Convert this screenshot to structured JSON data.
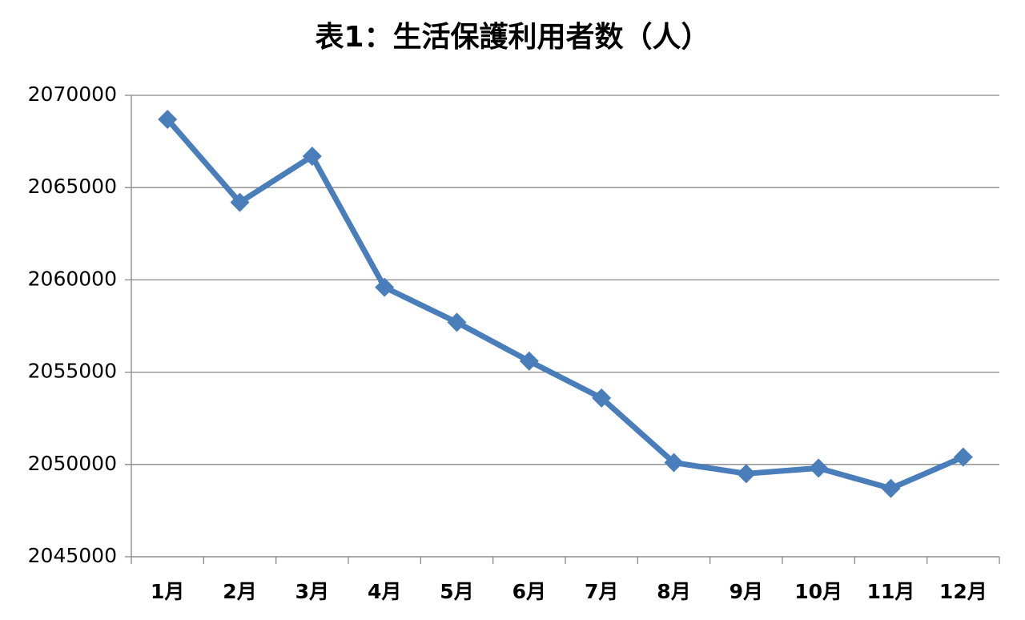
{
  "chart_data": {
    "type": "line",
    "title": "表1：生活保護利用者数（人）",
    "categories": [
      "1月",
      "2月",
      "3月",
      "4月",
      "5月",
      "6月",
      "7月",
      "8月",
      "9月",
      "10月",
      "11月",
      "12月"
    ],
    "values": [
      2068700,
      2064200,
      2066700,
      2059600,
      2057700,
      2055600,
      2053600,
      2050100,
      2049500,
      2049800,
      2048700,
      2050400
    ],
    "color": "#4a7ebb",
    "ylim": [
      2045000,
      2070000
    ],
    "yticks": [
      2045000,
      2050000,
      2055000,
      2060000,
      2065000,
      2070000
    ],
    "grid": true
  }
}
